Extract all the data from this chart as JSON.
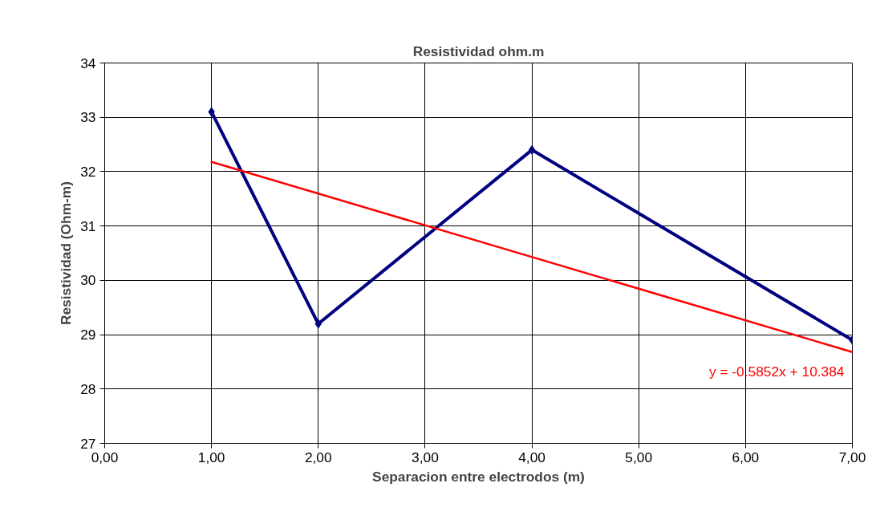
{
  "chart_data": {
    "type": "line",
    "title": "Resistividad ohm.m",
    "xlabel": "Separacion entre electrodos (m)",
    "ylabel": "Resistividad (Ohm-m)",
    "x": [
      1,
      2,
      4,
      7
    ],
    "series": [
      {
        "color": "#000080",
        "values": [
          33.1,
          29.2,
          32.4,
          28.9
        ],
        "marker": "diamond"
      },
      {
        "type": "line",
        "color": "#ff0000",
        "x": [
          1,
          7
        ],
        "values": [
          32.18,
          28.68
        ],
        "marker": "none"
      }
    ],
    "annotations": [
      "y = -0.5852x + 10.384"
    ],
    "xlim": [
      0,
      7
    ],
    "ylim": [
      27,
      34
    ],
    "xticks": [
      {
        "value": 0,
        "label": "0,00"
      },
      {
        "value": 1,
        "label": "1,00"
      },
      {
        "value": 2,
        "label": "2,00"
      },
      {
        "value": 3,
        "label": "3,00"
      },
      {
        "value": 4,
        "label": "4,00"
      },
      {
        "value": 5,
        "label": "5,00"
      },
      {
        "value": 6,
        "label": "6,00"
      },
      {
        "value": 7,
        "label": "7,00"
      }
    ],
    "yticks": [
      27,
      28,
      29,
      30,
      31,
      32,
      33,
      34
    ],
    "grid": true
  }
}
